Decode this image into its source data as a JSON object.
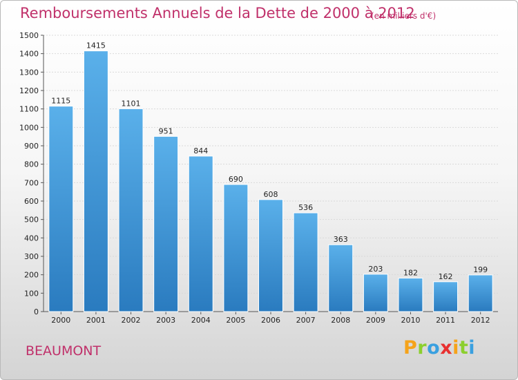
{
  "chart_data": {
    "type": "bar",
    "title": "Remboursements Annuels de la Dette de 2000 à 2012",
    "subtitle": "(en milliers d'€)",
    "xlabel": "",
    "ylabel": "",
    "categories": [
      "2000",
      "2001",
      "2002",
      "2003",
      "2004",
      "2005",
      "2006",
      "2007",
      "2008",
      "2009",
      "2010",
      "2011",
      "2012"
    ],
    "values": [
      1115,
      1415,
      1101,
      951,
      844,
      690,
      608,
      536,
      363,
      203,
      182,
      162,
      199
    ],
    "ylim": [
      0,
      1500
    ],
    "yticks": [
      0,
      100,
      200,
      300,
      400,
      500,
      600,
      700,
      800,
      900,
      1000,
      1100,
      1200,
      1300,
      1400,
      1500
    ],
    "grid": true,
    "legend": "none",
    "bar_color_top": "#5ab0ea",
    "bar_color_bottom": "#2a7bbf"
  },
  "footer": {
    "city": "BEAUMONT",
    "brand": "Proxiti",
    "brand_colors": [
      "#f5a31a",
      "#8ccf2e",
      "#3aa0e0",
      "#e83030",
      "#f5a31a",
      "#8ccf2e",
      "#3aa0e0"
    ]
  },
  "colors": {
    "accent": "#c0306a"
  }
}
